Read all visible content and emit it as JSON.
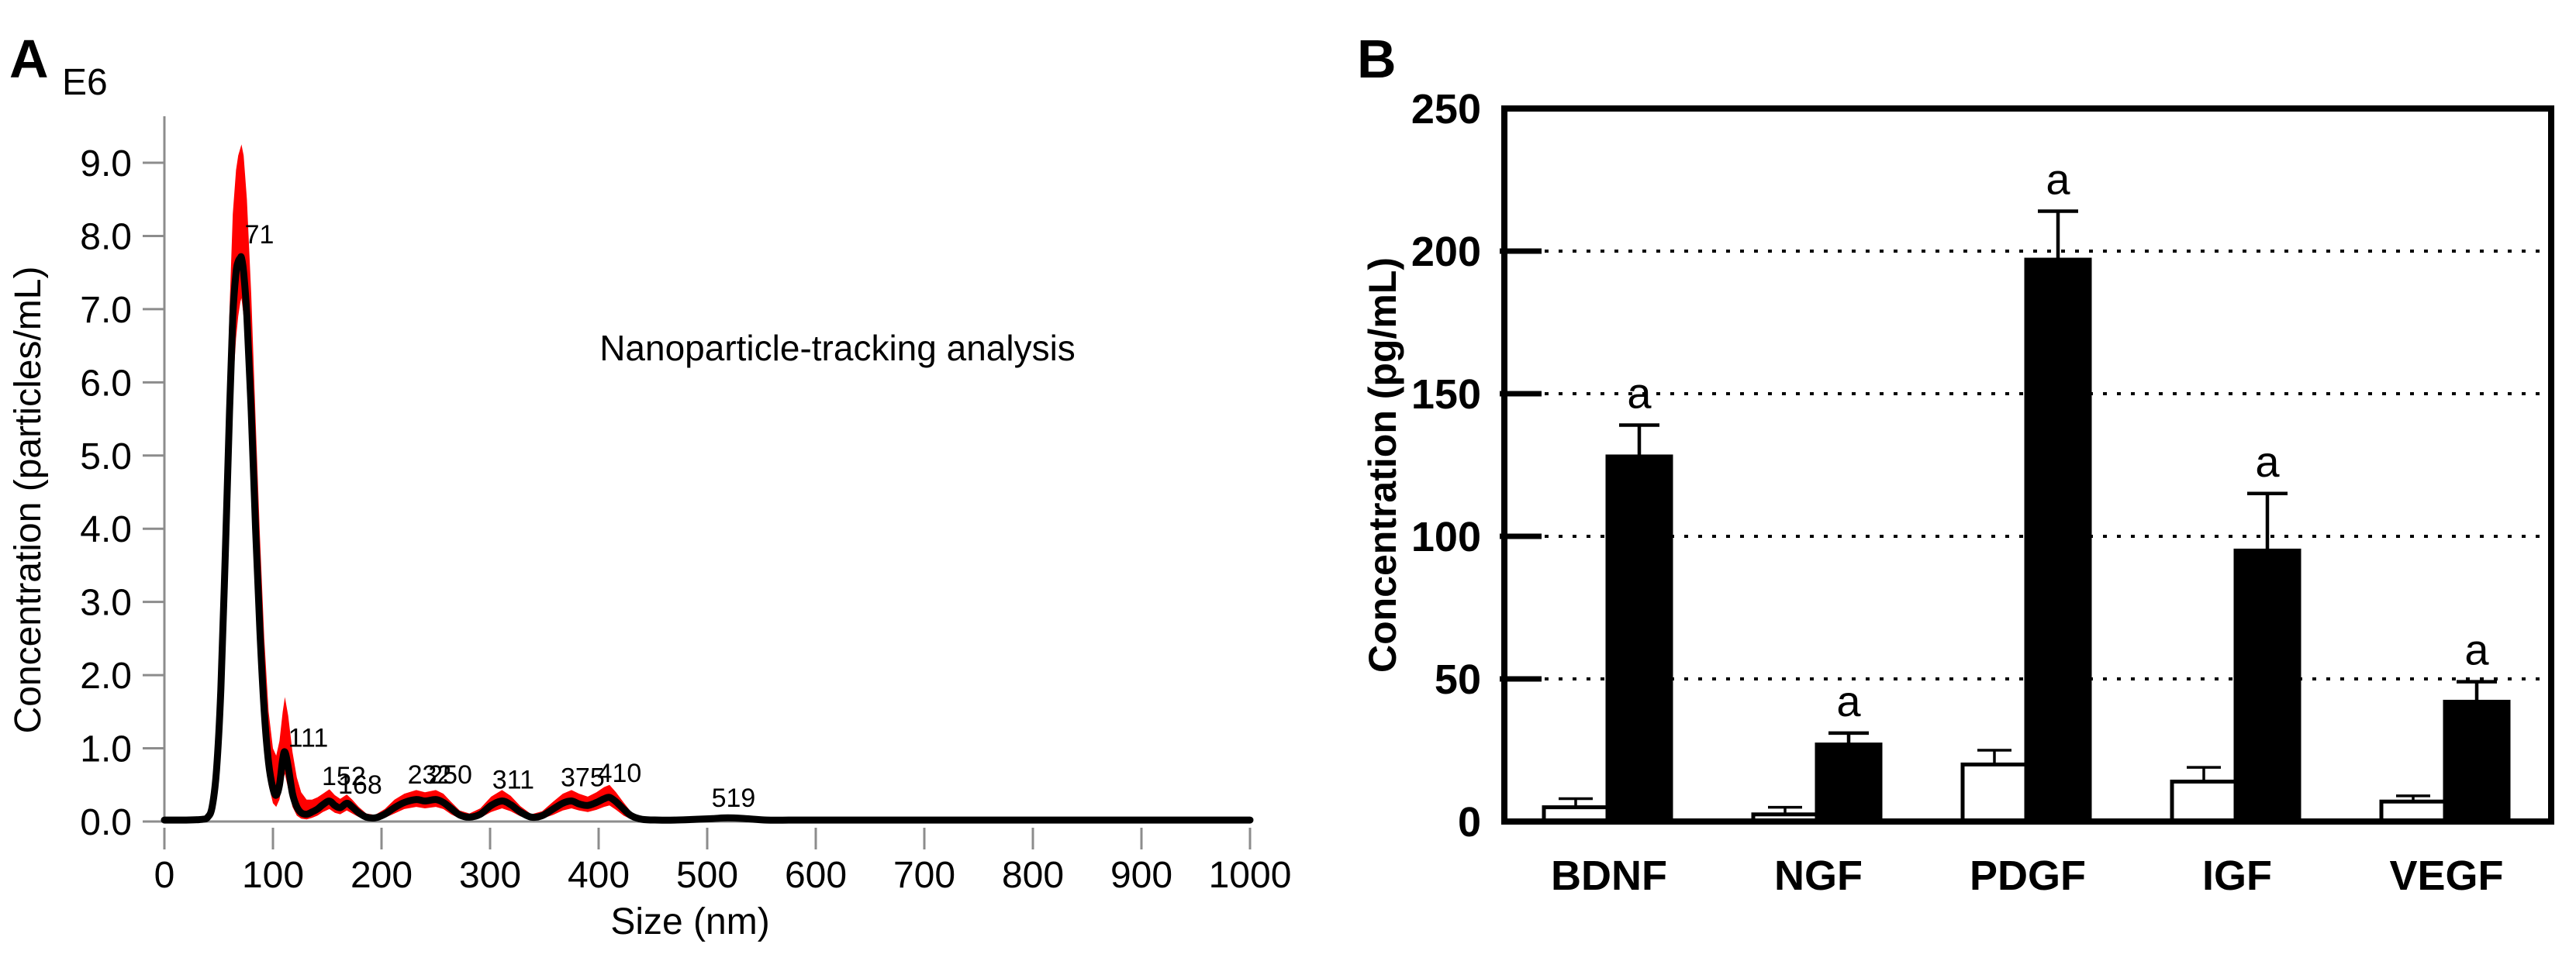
{
  "figure": {
    "background": "#ffffff"
  },
  "chart_data": [
    {
      "id": "nanoparticle-tracking",
      "panel_letter": "A",
      "type": "area",
      "title": "Nanoparticle-tracking analysis",
      "xlabel": "Size (nm)",
      "ylabel": "Concentration (particles/mL)",
      "y_scale_note": "E6",
      "xlim": [
        0,
        1000
      ],
      "ylim": [
        0,
        9.0
      ],
      "x_ticks": [
        0,
        100,
        200,
        300,
        400,
        500,
        600,
        700,
        800,
        900,
        1000
      ],
      "y_ticks": [
        0,
        1,
        2,
        3,
        4,
        5,
        6,
        7,
        8,
        9
      ],
      "y_tick_labels": [
        "0.0",
        "1.0",
        "2.0",
        "3.0",
        "4.0",
        "5.0",
        "6.0",
        "7.0",
        "8.0",
        "9.0"
      ],
      "line_color": "#000000",
      "band_color": "#ff0000",
      "axis_color": "#8c8c8c",
      "peak_label_color": "#2222cc",
      "grid": false,
      "peak_labels": [
        {
          "x": 74,
          "y": 7.9,
          "text": "71"
        },
        {
          "x": 114,
          "y": 1.02,
          "text": "111"
        },
        {
          "x": 145,
          "y": 0.5,
          "text": "152"
        },
        {
          "x": 160,
          "y": 0.38,
          "text": "168"
        },
        {
          "x": 224,
          "y": 0.52,
          "text": "232"
        },
        {
          "x": 243,
          "y": 0.52,
          "text": "250"
        },
        {
          "x": 302,
          "y": 0.45,
          "text": "311"
        },
        {
          "x": 365,
          "y": 0.48,
          "text": "375"
        },
        {
          "x": 399,
          "y": 0.54,
          "text": "410"
        },
        {
          "x": 504,
          "y": 0.2,
          "text": "519"
        }
      ],
      "series": {
        "x": [
          0,
          20,
          35,
          40,
          44,
          48,
          52,
          56,
          60,
          63,
          66,
          68,
          70,
          71,
          73,
          76,
          80,
          84,
          88,
          92,
          96,
          100,
          103,
          106,
          109,
          111,
          114,
          118,
          122,
          126,
          131,
          136,
          141,
          146,
          152,
          157,
          162,
          168,
          173,
          179,
          186,
          194,
          203,
          212,
          221,
          232,
          240,
          250,
          257,
          264,
          272,
          281,
          291,
          301,
          311,
          319,
          328,
          338,
          348,
          358,
          367,
          375,
          382,
          390,
          398,
          405,
          410,
          416,
          423,
          430,
          440,
          455,
          470,
          490,
          505,
          519,
          535,
          555,
          580,
          620,
          700,
          800,
          900,
          1000
        ],
        "mean": [
          0.02,
          0.02,
          0.03,
          0.06,
          0.2,
          0.7,
          1.8,
          3.6,
          5.6,
          6.9,
          7.5,
          7.65,
          7.7,
          7.7,
          7.5,
          6.9,
          5.6,
          4.0,
          2.6,
          1.5,
          0.8,
          0.45,
          0.36,
          0.5,
          0.85,
          0.95,
          0.75,
          0.38,
          0.2,
          0.12,
          0.1,
          0.13,
          0.17,
          0.23,
          0.28,
          0.22,
          0.19,
          0.25,
          0.2,
          0.12,
          0.06,
          0.05,
          0.1,
          0.19,
          0.26,
          0.3,
          0.28,
          0.3,
          0.26,
          0.18,
          0.09,
          0.06,
          0.1,
          0.22,
          0.28,
          0.23,
          0.13,
          0.06,
          0.08,
          0.17,
          0.25,
          0.28,
          0.24,
          0.22,
          0.26,
          0.31,
          0.33,
          0.27,
          0.17,
          0.08,
          0.03,
          0.02,
          0.02,
          0.03,
          0.04,
          0.05,
          0.04,
          0.02,
          0.02,
          0.02,
          0.02,
          0.02,
          0.02,
          0.02
        ],
        "upper": [
          0.02,
          0.02,
          0.04,
          0.1,
          0.4,
          1.2,
          2.6,
          4.8,
          7.0,
          8.3,
          8.9,
          9.1,
          9.2,
          9.25,
          9.1,
          8.5,
          7.2,
          5.5,
          3.9,
          2.5,
          1.5,
          1.0,
          0.9,
          1.1,
          1.5,
          1.7,
          1.45,
          0.95,
          0.6,
          0.4,
          0.3,
          0.3,
          0.33,
          0.38,
          0.44,
          0.36,
          0.31,
          0.37,
          0.3,
          0.2,
          0.11,
          0.09,
          0.17,
          0.3,
          0.38,
          0.43,
          0.4,
          0.43,
          0.38,
          0.27,
          0.15,
          0.11,
          0.18,
          0.34,
          0.43,
          0.35,
          0.21,
          0.1,
          0.14,
          0.27,
          0.38,
          0.43,
          0.38,
          0.34,
          0.4,
          0.47,
          0.5,
          0.4,
          0.26,
          0.13,
          0.04,
          0.02,
          0.02,
          0.03,
          0.04,
          0.05,
          0.04,
          0.02,
          0.02,
          0.02,
          0.02,
          0.02,
          0.02,
          0.02
        ],
        "lower": [
          0.02,
          0.02,
          0.02,
          0.04,
          0.1,
          0.4,
          1.2,
          2.7,
          4.5,
          5.9,
          6.6,
          6.9,
          7.1,
          7.15,
          6.9,
          6.2,
          4.7,
          3.1,
          1.9,
          1.0,
          0.5,
          0.25,
          0.2,
          0.3,
          0.55,
          0.65,
          0.45,
          0.2,
          0.08,
          0.04,
          0.03,
          0.05,
          0.08,
          0.13,
          0.17,
          0.12,
          0.1,
          0.15,
          0.11,
          0.06,
          0.03,
          0.02,
          0.05,
          0.11,
          0.17,
          0.2,
          0.18,
          0.2,
          0.17,
          0.1,
          0.04,
          0.03,
          0.05,
          0.13,
          0.18,
          0.14,
          0.07,
          0.03,
          0.04,
          0.09,
          0.15,
          0.18,
          0.15,
          0.13,
          0.16,
          0.2,
          0.22,
          0.16,
          0.08,
          0.03,
          0.02,
          0.02,
          0.02,
          0.03,
          0.04,
          0.05,
          0.04,
          0.02,
          0.02,
          0.02,
          0.02,
          0.02,
          0.02,
          0.02
        ]
      }
    },
    {
      "id": "growth-factor-concentrations",
      "panel_letter": "B",
      "type": "bar",
      "ylabel": "Concentration (pg/mL)",
      "ylim": [
        0,
        250
      ],
      "y_ticks": [
        0,
        50,
        100,
        150,
        200,
        250
      ],
      "gridlines": [
        50,
        100,
        150,
        200
      ],
      "categories": [
        "BDNF",
        "NGF",
        "PDGF",
        "IGF",
        "VEGF"
      ],
      "series": [
        {
          "name": "open-bar",
          "fill": "#ffffff",
          "values": [
            5,
            2.5,
            20,
            14,
            7
          ],
          "errors": [
            3,
            2.5,
            5,
            5,
            2
          ],
          "sig": [
            "",
            "",
            "",
            "",
            ""
          ]
        },
        {
          "name": "solid-bar",
          "fill": "#000000",
          "values": [
            128,
            27,
            197,
            95,
            42
          ],
          "errors": [
            11,
            4,
            17,
            20,
            7
          ],
          "sig": [
            "a",
            "a",
            "a",
            "a",
            "a"
          ]
        }
      ],
      "sig_marker": "a",
      "frame_color": "#000000",
      "gridline_style": "dotted"
    }
  ]
}
